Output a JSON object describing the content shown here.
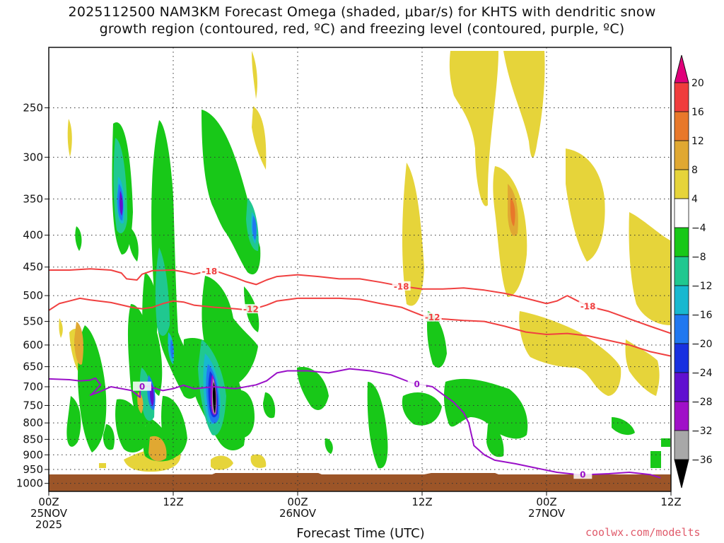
{
  "title": {
    "line1": "2025112500 NAM3KM Forecast Omega (shaded, μbar/s) for KHTS with dendritic snow",
    "line2": "growth region (contoured, red, ºC) and freezing level (contoured, purple, ºC)"
  },
  "credit": "coolwx.com/modelts",
  "colors": {
    "ground": "#9c5528",
    "dgz_contour": "#f04040",
    "freezing_contour": "#9a10c8"
  },
  "chart_data": {
    "type": "heatmap",
    "xlabel": "Forecast Time (UTC)",
    "ylabel": "",
    "x_range_hours": [
      0,
      60
    ],
    "y_range_hPa": [
      200,
      1030
    ],
    "y_scale": "log-pressure",
    "grid": true,
    "x_ticks": [
      {
        "hour": 0,
        "labels": [
          "00Z",
          "25NOV",
          "2025"
        ]
      },
      {
        "hour": 12,
        "labels": [
          "12Z"
        ]
      },
      {
        "hour": 24,
        "labels": [
          "00Z",
          "26NOV"
        ]
      },
      {
        "hour": 36,
        "labels": [
          "12Z"
        ]
      },
      {
        "hour": 48,
        "labels": [
          "00Z",
          "27NOV"
        ]
      },
      {
        "hour": 60,
        "labels": [
          "12Z"
        ]
      }
    ],
    "y_ticks": [
      250,
      300,
      350,
      400,
      450,
      500,
      550,
      600,
      650,
      700,
      750,
      800,
      850,
      900,
      950,
      1000
    ],
    "colorbar": {
      "levels": [
        20,
        16,
        12,
        8,
        4,
        -4,
        -8,
        -12,
        -16,
        -20,
        -24,
        -28,
        -32,
        -36
      ],
      "colors": [
        "#e0007a",
        "#f03c3c",
        "#e8782a",
        "#e0a832",
        "#e6d43a",
        "#ffffff",
        "#18c818",
        "#20c890",
        "#18b8d0",
        "#2078f0",
        "#1830e0",
        "#6010d0",
        "#a010c8",
        "#a8a8a8",
        "#000000"
      ]
    },
    "contours": [
      {
        "name": "-18",
        "color": "#f04040",
        "label_hours": [
          15.5,
          34,
          52
        ],
        "points": [
          [
            0,
            455
          ],
          [
            2,
            455
          ],
          [
            4,
            453
          ],
          [
            6,
            455
          ],
          [
            7,
            460
          ],
          [
            7.5,
            470
          ],
          [
            8.5,
            472
          ],
          [
            9,
            462
          ],
          [
            10,
            456
          ],
          [
            12,
            455
          ],
          [
            13,
            458
          ],
          [
            14,
            462
          ],
          [
            15,
            458
          ],
          [
            16,
            456
          ],
          [
            17,
            462
          ],
          [
            18,
            468
          ],
          [
            19,
            475
          ],
          [
            20,
            480
          ],
          [
            21,
            472
          ],
          [
            22,
            466
          ],
          [
            24,
            463
          ],
          [
            26,
            466
          ],
          [
            28,
            470
          ],
          [
            30,
            470
          ],
          [
            32,
            476
          ],
          [
            34,
            483
          ],
          [
            36,
            488
          ],
          [
            38,
            488
          ],
          [
            40,
            486
          ],
          [
            42,
            490
          ],
          [
            44,
            496
          ],
          [
            46,
            505
          ],
          [
            48,
            515
          ],
          [
            49,
            510
          ],
          [
            50,
            500
          ],
          [
            51,
            510
          ],
          [
            52,
            520
          ],
          [
            54,
            530
          ],
          [
            56,
            545
          ],
          [
            58,
            560
          ],
          [
            60,
            575
          ]
        ]
      },
      {
        "name": "-12",
        "color": "#f04040",
        "label_hours": [
          19.5,
          37
        ],
        "points": [
          [
            0,
            528
          ],
          [
            1,
            515
          ],
          [
            2,
            510
          ],
          [
            3,
            505
          ],
          [
            4,
            508
          ],
          [
            6,
            513
          ],
          [
            8,
            522
          ],
          [
            9,
            525
          ],
          [
            10,
            522
          ],
          [
            11,
            515
          ],
          [
            12,
            510
          ],
          [
            13,
            512
          ],
          [
            14,
            518
          ],
          [
            16,
            522
          ],
          [
            18,
            525
          ],
          [
            19,
            527
          ],
          [
            20,
            524
          ],
          [
            21,
            518
          ],
          [
            22,
            510
          ],
          [
            24,
            505
          ],
          [
            26,
            505
          ],
          [
            28,
            505
          ],
          [
            30,
            507
          ],
          [
            32,
            515
          ],
          [
            34,
            522
          ],
          [
            35,
            530
          ],
          [
            36,
            538
          ],
          [
            38,
            545
          ],
          [
            40,
            548
          ],
          [
            42,
            550
          ],
          [
            44,
            560
          ],
          [
            46,
            572
          ],
          [
            48,
            577
          ],
          [
            50,
            575
          ],
          [
            52,
            580
          ],
          [
            54,
            590
          ],
          [
            56,
            600
          ],
          [
            58,
            615
          ],
          [
            60,
            625
          ]
        ]
      },
      {
        "name": "0",
        "color": "#9a10c8",
        "label_hours": [
          9,
          35.5,
          51.5
        ],
        "points": [
          [
            0,
            680
          ],
          [
            2,
            682
          ],
          [
            3,
            685
          ],
          [
            4,
            683
          ],
          [
            4.5,
            678
          ],
          [
            5,
            695
          ],
          [
            4.2,
            718
          ],
          [
            4,
            722
          ],
          [
            5,
            712
          ],
          [
            6,
            700
          ],
          [
            7,
            705
          ],
          [
            8,
            710
          ],
          [
            8.8,
            728
          ],
          [
            8.8,
            700
          ],
          [
            9.5,
            698
          ],
          [
            11,
            710
          ],
          [
            12,
            705
          ],
          [
            13,
            696
          ],
          [
            14,
            705
          ],
          [
            16,
            700
          ],
          [
            18,
            705
          ],
          [
            20,
            695
          ],
          [
            21,
            685
          ],
          [
            22,
            665
          ],
          [
            23,
            660
          ],
          [
            25,
            660
          ],
          [
            27,
            665
          ],
          [
            29,
            655
          ],
          [
            31,
            660
          ],
          [
            33,
            670
          ],
          [
            35,
            690
          ],
          [
            37,
            700
          ],
          [
            38,
            720
          ],
          [
            39,
            740
          ],
          [
            40,
            770
          ],
          [
            40.5,
            800
          ],
          [
            41,
            870
          ],
          [
            42,
            900
          ],
          [
            43,
            918
          ],
          [
            45,
            930
          ],
          [
            47,
            945
          ],
          [
            49,
            960
          ],
          [
            51,
            968
          ],
          [
            52,
            968
          ],
          [
            54,
            965
          ],
          [
            56,
            960
          ],
          [
            58,
            968
          ],
          [
            59,
            980
          ]
        ]
      }
    ]
  }
}
